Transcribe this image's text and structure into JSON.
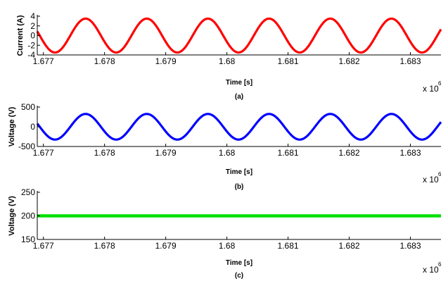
{
  "chart_data": [
    {
      "type": "line",
      "caption": "(a)",
      "xlabel": "Time [s]",
      "ylabel": "Current (A)",
      "x_multiplier": "x 10",
      "x_multiplier_exp": "6",
      "xlim": [
        1.6769,
        1.6835
      ],
      "xticks": [
        "1.677",
        "1.678",
        "1.679",
        "1.68",
        "1.681",
        "1.682",
        "1.683"
      ],
      "ylim": [
        -4,
        4
      ],
      "yticks": [
        "-4",
        "-2",
        "0",
        "2",
        "4"
      ],
      "grid": false,
      "series": [
        {
          "color": "#ff0000",
          "shape": "sine",
          "amplitude": 3.5,
          "offset": 0,
          "period": 0.001,
          "peak_at": 1.67769,
          "x_start": 1.6769,
          "x_end": 1.6835
        }
      ]
    },
    {
      "type": "line",
      "caption": "(b)",
      "xlabel": "Time [s]",
      "ylabel": "Voltage (V)",
      "x_multiplier": "x 10",
      "x_multiplier_exp": "6",
      "xlim": [
        1.6769,
        1.6835
      ],
      "xticks": [
        "1.677",
        "1.678",
        "1.679",
        "1.68",
        "1.681",
        "1.682",
        "1.683"
      ],
      "ylim": [
        -500,
        500
      ],
      "yticks": [
        "-500",
        "0",
        "500"
      ],
      "grid": false,
      "series": [
        {
          "color": "#0000ff",
          "shape": "sine",
          "amplitude": 325,
          "offset": 0,
          "period": 0.001,
          "peak_at": 1.67769,
          "x_start": 1.6769,
          "x_end": 1.6835
        }
      ]
    },
    {
      "type": "line",
      "caption": "(c)",
      "xlabel": "Time [s]",
      "ylabel": "Voltage (V)",
      "x_multiplier": "x 10",
      "x_multiplier_exp": "6",
      "xlim": [
        1.6769,
        1.6835
      ],
      "xticks": [
        "1.677",
        "1.678",
        "1.679",
        "1.68",
        "1.681",
        "1.682",
        "1.683"
      ],
      "ylim": [
        150,
        250
      ],
      "yticks": [
        "150",
        "200",
        "250"
      ],
      "grid": false,
      "series": [
        {
          "color": "#00e000",
          "shape": "constant",
          "value": 200,
          "x_start": 1.6769,
          "x_end": 1.6835
        }
      ]
    }
  ]
}
